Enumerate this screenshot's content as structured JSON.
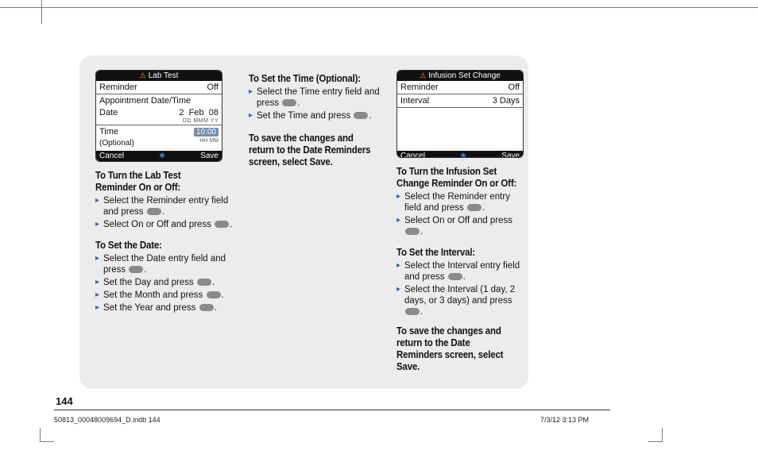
{
  "page": {
    "number": "144",
    "footer_left": "50813_00048009694_D.indb   144",
    "footer_right": "7/3/12   3:13 PM"
  },
  "col1": {
    "device": {
      "title_icon": "⚠",
      "title": "Lab Test",
      "rows": {
        "reminder_label": "Reminder",
        "reminder_value": "Off",
        "appt_label": "Appointment Date/Time",
        "date_label": "Date",
        "date_day": "2",
        "date_mon": "Feb",
        "date_year": "08",
        "date_hint": "DD   MMM   YY",
        "time_label": "Time",
        "time_sub": "(Optional)",
        "time_value": "10:00",
        "time_hint": "HH MM"
      },
      "footer_left": "Cancel",
      "footer_right": "Save"
    },
    "h1": "To Turn the Lab Test Reminder On or Off:",
    "b1": [
      "Select the Reminder entry field and press @BTN@.",
      "Select On or Off and press @BTN@."
    ],
    "h2": "To Set the Date:",
    "b2": [
      "Select the Date entry field and press @BTN@.",
      "Set the Day and press @BTN@.",
      "Set the Month and press @BTN@.",
      "Set the Year and press @BTN@."
    ]
  },
  "col2": {
    "h1": "To Set the Time (Optional):",
    "b1": [
      "Select the Time entry field and press @BTN@.",
      "Set the Time and press @BTN@."
    ],
    "h2": "To save the changes and return to the Date Reminders screen, select Save."
  },
  "col3": {
    "device": {
      "title_icon": "⚠",
      "title": "Infusion Set Change",
      "rows": {
        "reminder_label": "Reminder",
        "reminder_value": "Off",
        "interval_label": "Interval",
        "interval_value": "3 Days"
      },
      "footer_left": "Cancel",
      "footer_right": "Save"
    },
    "h1": "To Turn the Infusion Set Change Reminder On or Off:",
    "b1": [
      "Select the Reminder entry field and press @BTN@.",
      "Select On or Off and press @BTN@."
    ],
    "h2": "To Set the Interval:",
    "b2": [
      "Select the Interval entry field and press @BTN@.",
      "Select the Interval (1 day, 2 days, or 3 days) and press @BTN@."
    ],
    "h3": "To save the changes and return to the Date Reminders screen, select Save."
  }
}
